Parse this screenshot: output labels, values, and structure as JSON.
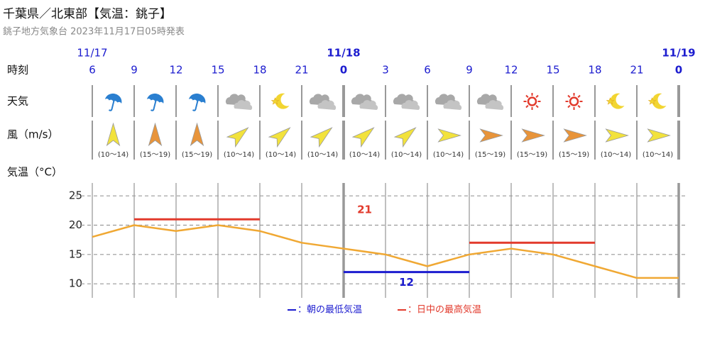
{
  "header": {
    "title": "千葉県／北東部【気温：銚子】",
    "subtitle": "銚子地方気象台 2023年11月17日05時発表"
  },
  "chart_data": {
    "type": "line",
    "row_labels": {
      "time": "時刻",
      "weather": "天気",
      "wind": "風（m/s）"
    },
    "dates": [
      "11/17",
      null,
      null,
      null,
      null,
      null,
      "11/18",
      null,
      null,
      null,
      null,
      null,
      null,
      null,
      "11/19"
    ],
    "categories": [
      "6",
      "9",
      "12",
      "15",
      "18",
      "21",
      "0",
      "3",
      "6",
      "9",
      "12",
      "15",
      "18",
      "21",
      "0"
    ],
    "weather": [
      "rain",
      "rain",
      "rain",
      "cloud",
      "moon",
      "cloud",
      "cloud",
      "cloud",
      "cloud",
      "cloud",
      "sun",
      "sun",
      "moon",
      "moon"
    ],
    "wind": {
      "speeds": [
        "(10～14)",
        "(15～19)",
        "(15～19)",
        "(10～14)",
        "(10～14)",
        "(10～14)",
        "(10～14)",
        "(10～14)",
        "(10～14)",
        "(15～19)",
        "(15～19)",
        "(15～19)",
        "(10～14)",
        "(10～14)"
      ],
      "directions": [
        0,
        0,
        0,
        50,
        50,
        50,
        50,
        50,
        90,
        90,
        90,
        90,
        90,
        90
      ],
      "colors": [
        "#f2e23c",
        "#e8943a",
        "#e8943a",
        "#f2e23c",
        "#f2e23c",
        "#f2e23c",
        "#f2e23c",
        "#f2e23c",
        "#f2e23c",
        "#e8943a",
        "#e8943a",
        "#e8943a",
        "#f2e23c",
        "#f2e23c"
      ]
    },
    "y_label": "気温（°C）",
    "ylim": [
      7.6,
      27.2
    ],
    "yticks": [
      10,
      15,
      20,
      25
    ],
    "grid": true,
    "series": [
      {
        "color": "#f0a833",
        "values": [
          18,
          20,
          19,
          20,
          19,
          17,
          16,
          15,
          13,
          15,
          16,
          15,
          13,
          11,
          11
        ]
      },
      {
        "name": "：朝の最低気温",
        "color": "#1c1ccf",
        "label_position": "below",
        "values": [
          null,
          null,
          null,
          null,
          null,
          null,
          12,
          12,
          12,
          12,
          null,
          null,
          null,
          null,
          null
        ]
      },
      {
        "name": "：日中の最高気温",
        "color": "#e23a2c",
        "label_position": "above",
        "values": [
          null,
          21,
          21,
          21,
          21,
          null,
          null,
          null,
          null,
          17,
          17,
          17,
          17,
          null,
          null
        ]
      }
    ]
  }
}
